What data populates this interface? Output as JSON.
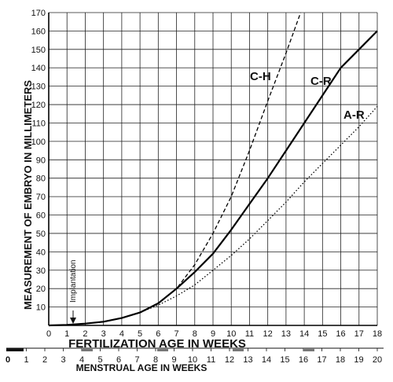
{
  "chart_data": {
    "type": "line",
    "xlabel": "FERTILIZATION AGE IN WEEKS",
    "ylabel": "MEASUREMENT OF EMBRYO IN MILLIMETERS",
    "secondary_xlabel": "MENSTRUAL AGE IN WEEKS",
    "xlim": [
      0,
      18
    ],
    "ylim": [
      0,
      170
    ],
    "x_ticks": [
      0,
      1,
      2,
      3,
      4,
      5,
      6,
      7,
      8,
      9,
      10,
      11,
      12,
      13,
      14,
      15,
      16,
      17,
      18
    ],
    "y_ticks": [
      10,
      20,
      30,
      40,
      50,
      60,
      70,
      80,
      90,
      100,
      110,
      120,
      130,
      140,
      150,
      160,
      170
    ],
    "menstrual_ticks": [
      0,
      1,
      2,
      3,
      4,
      5,
      6,
      7,
      8,
      9,
      10,
      11,
      12,
      13,
      14,
      15,
      16,
      17,
      18,
      19,
      20
    ],
    "grid": true,
    "annotations": [
      {
        "text": "Implantation",
        "x": 1.5
      }
    ],
    "series": [
      {
        "name": "C-H",
        "style": "dashed",
        "x": [
          0,
          1,
          2,
          3,
          4,
          5,
          6,
          7,
          8,
          9,
          10,
          11,
          12,
          13,
          13.8
        ],
        "y": [
          0,
          0.3,
          1,
          2,
          4,
          7,
          12,
          20,
          33,
          50,
          70,
          95,
          122,
          148,
          170
        ]
      },
      {
        "name": "C-R",
        "style": "solid",
        "x": [
          0,
          1,
          2,
          3,
          4,
          5,
          6,
          7,
          8,
          9,
          10,
          11,
          12,
          13,
          14,
          15,
          16,
          17,
          18
        ],
        "y": [
          0,
          0.3,
          1,
          2,
          4,
          7,
          12,
          20,
          29,
          39,
          52,
          66,
          80,
          95,
          110,
          125,
          140,
          150,
          160
        ]
      },
      {
        "name": "A-R",
        "style": "dotted",
        "x": [
          0,
          1,
          2,
          3,
          4,
          5,
          6,
          7,
          8,
          9,
          10,
          11,
          12,
          13,
          14,
          15,
          16,
          17,
          18
        ],
        "y": [
          0,
          0.3,
          1,
          2,
          4,
          7,
          11,
          16,
          22,
          30,
          38,
          47,
          57,
          67,
          78,
          88,
          98,
          108,
          119
        ]
      }
    ]
  }
}
